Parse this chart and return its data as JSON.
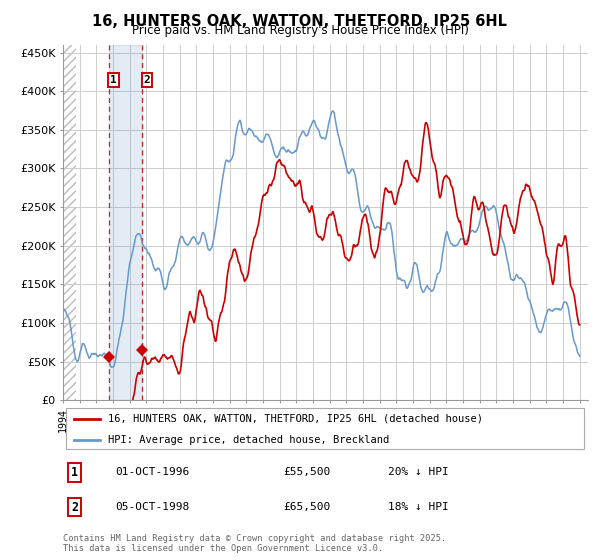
{
  "title": "16, HUNTERS OAK, WATTON, THETFORD, IP25 6HL",
  "subtitle": "Price paid vs. HM Land Registry's House Price Index (HPI)",
  "legend_label1": "16, HUNTERS OAK, WATTON, THETFORD, IP25 6HL (detached house)",
  "legend_label2": "HPI: Average price, detached house, Breckland",
  "sale1_label": "1",
  "sale1_date": "01-OCT-1996",
  "sale1_price": "£55,500",
  "sale1_hpi": "20% ↓ HPI",
  "sale1_x": 1996.75,
  "sale1_y": 55500,
  "sale2_label": "2",
  "sale2_date": "05-OCT-1998",
  "sale2_price": "£65,500",
  "sale2_hpi": "18% ↓ HPI",
  "sale2_x": 1998.75,
  "sale2_y": 65500,
  "footer": "Contains HM Land Registry data © Crown copyright and database right 2025.\nThis data is licensed under the Open Government Licence v3.0.",
  "xmin": 1994.0,
  "xmax": 2025.5,
  "ymin": 0,
  "ymax": 460000,
  "yticks": [
    0,
    50000,
    100000,
    150000,
    200000,
    250000,
    300000,
    350000,
    400000,
    450000
  ],
  "ytick_labels": [
    "£0",
    "£50K",
    "£100K",
    "£150K",
    "£200K",
    "£250K",
    "£300K",
    "£350K",
    "£400K",
    "£450K"
  ],
  "color_red": "#cc0000",
  "color_blue": "#6699cc",
  "background_color": "#ffffff",
  "grid_color": "#cccccc",
  "hatch_end": 1994.8
}
